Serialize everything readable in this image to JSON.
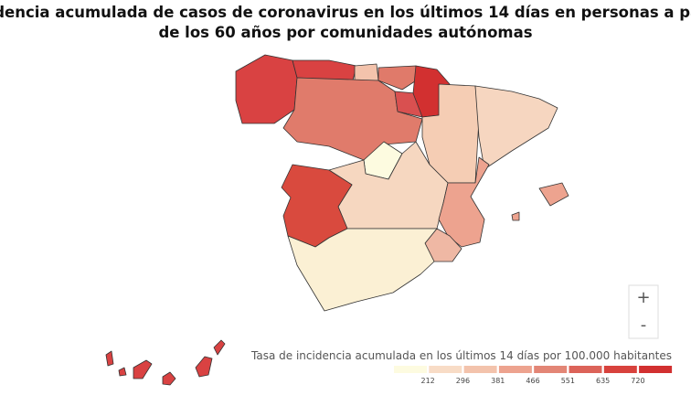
{
  "title": [
    "Incidencia acumulada de casos de coronavirus en los últimos 14 días en personas a partir",
    "de los 60 años por comunidades autónomas"
  ],
  "legend": {
    "title": "Tasa de incidencia acumulada en los últimos 14 días por 100.000 habitantes",
    "ticks": [
      212,
      296,
      381,
      466,
      551,
      635,
      720
    ],
    "colors": [
      "#fdfbe0",
      "#f8dcc6",
      "#f3c3ac",
      "#eda38f",
      "#e38676",
      "#dc6359",
      "#d8423d",
      "#d23030"
    ]
  },
  "zoom": {
    "in": "+",
    "out": "-"
  }
}
